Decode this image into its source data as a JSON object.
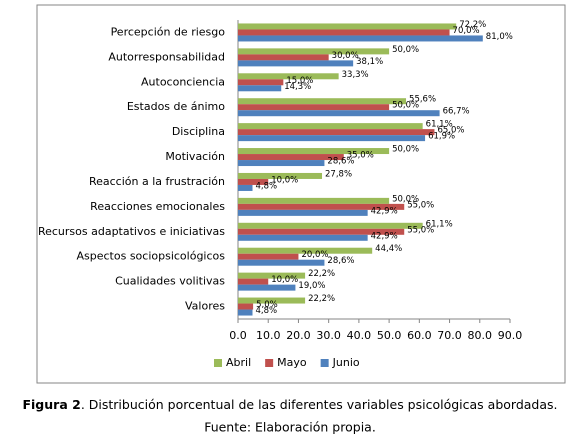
{
  "chart_data": {
    "type": "bar",
    "orientation": "horizontal",
    "categories": [
      "Percepción de riesgo",
      "Autorresponsabilidad",
      "Autoconciencia",
      "Estados de ánimo",
      "Disciplina",
      "Motivación",
      "Reacción a la frustración",
      "Reacciones emocionales",
      "Recursos adaptativos e iniciativas",
      "Aspectos sociopsicológicos",
      "Cualidades volitivas",
      "Valores"
    ],
    "series": [
      {
        "name": "Abril",
        "color": "#9bbb59",
        "values": [
          72.2,
          50.0,
          33.3,
          55.6,
          61.1,
          50.0,
          27.8,
          50.0,
          61.1,
          44.4,
          22.2,
          22.2
        ],
        "value_labels": [
          "72,2%",
          "50,0%",
          "33,3%",
          "55,6%",
          "61,1%",
          "50,0%",
          "27,8%",
          "50,0%",
          "61,1%",
          "44,4%",
          "22,2%",
          "22,2%"
        ]
      },
      {
        "name": "Mayo",
        "color": "#c0504d",
        "values": [
          70.0,
          30.0,
          15.0,
          50.0,
          65.0,
          35.0,
          10.0,
          55.0,
          55.0,
          20.0,
          10.0,
          5.0
        ],
        "value_labels": [
          "70,0%",
          "30,0%",
          "15,0%",
          "50,0%",
          "65,0%",
          "35,0%",
          "10,0%",
          "55,0%",
          "55,0%",
          "20,0%",
          "10,0%",
          "5,0%"
        ]
      },
      {
        "name": "Junio",
        "color": "#4f81bd",
        "values": [
          81.0,
          38.1,
          14.3,
          66.7,
          61.9,
          28.6,
          4.8,
          42.9,
          42.9,
          28.6,
          19.0,
          4.8
        ],
        "value_labels": [
          "81,0%",
          "38,1%",
          "14,3%",
          "66,7%",
          "61,9%",
          "28,6%",
          "4,8%",
          "42,9%",
          "42,9%",
          "28,6%",
          "19,0%",
          "4,8%"
        ]
      }
    ],
    "xlim": [
      0,
      90
    ],
    "xticks": [
      {
        "value": 0,
        "label": "0.0"
      },
      {
        "value": 10,
        "label": "10.0"
      },
      {
        "value": 20,
        "label": "20.0"
      },
      {
        "value": 30,
        "label": "30.0"
      },
      {
        "value": 40,
        "label": "40.0"
      },
      {
        "value": 50,
        "label": "50.0"
      },
      {
        "value": 60,
        "label": "60.0"
      },
      {
        "value": 70,
        "label": "70.0"
      },
      {
        "value": 80,
        "label": "80.0"
      },
      {
        "value": 90,
        "label": "90.0"
      }
    ],
    "legend": "bottom"
  },
  "caption": {
    "label": "Figura 2",
    "text": ". Distribución porcentual de las diferentes variables psicológicas abordadas.",
    "source": "Fuente: Elaboración propia."
  }
}
